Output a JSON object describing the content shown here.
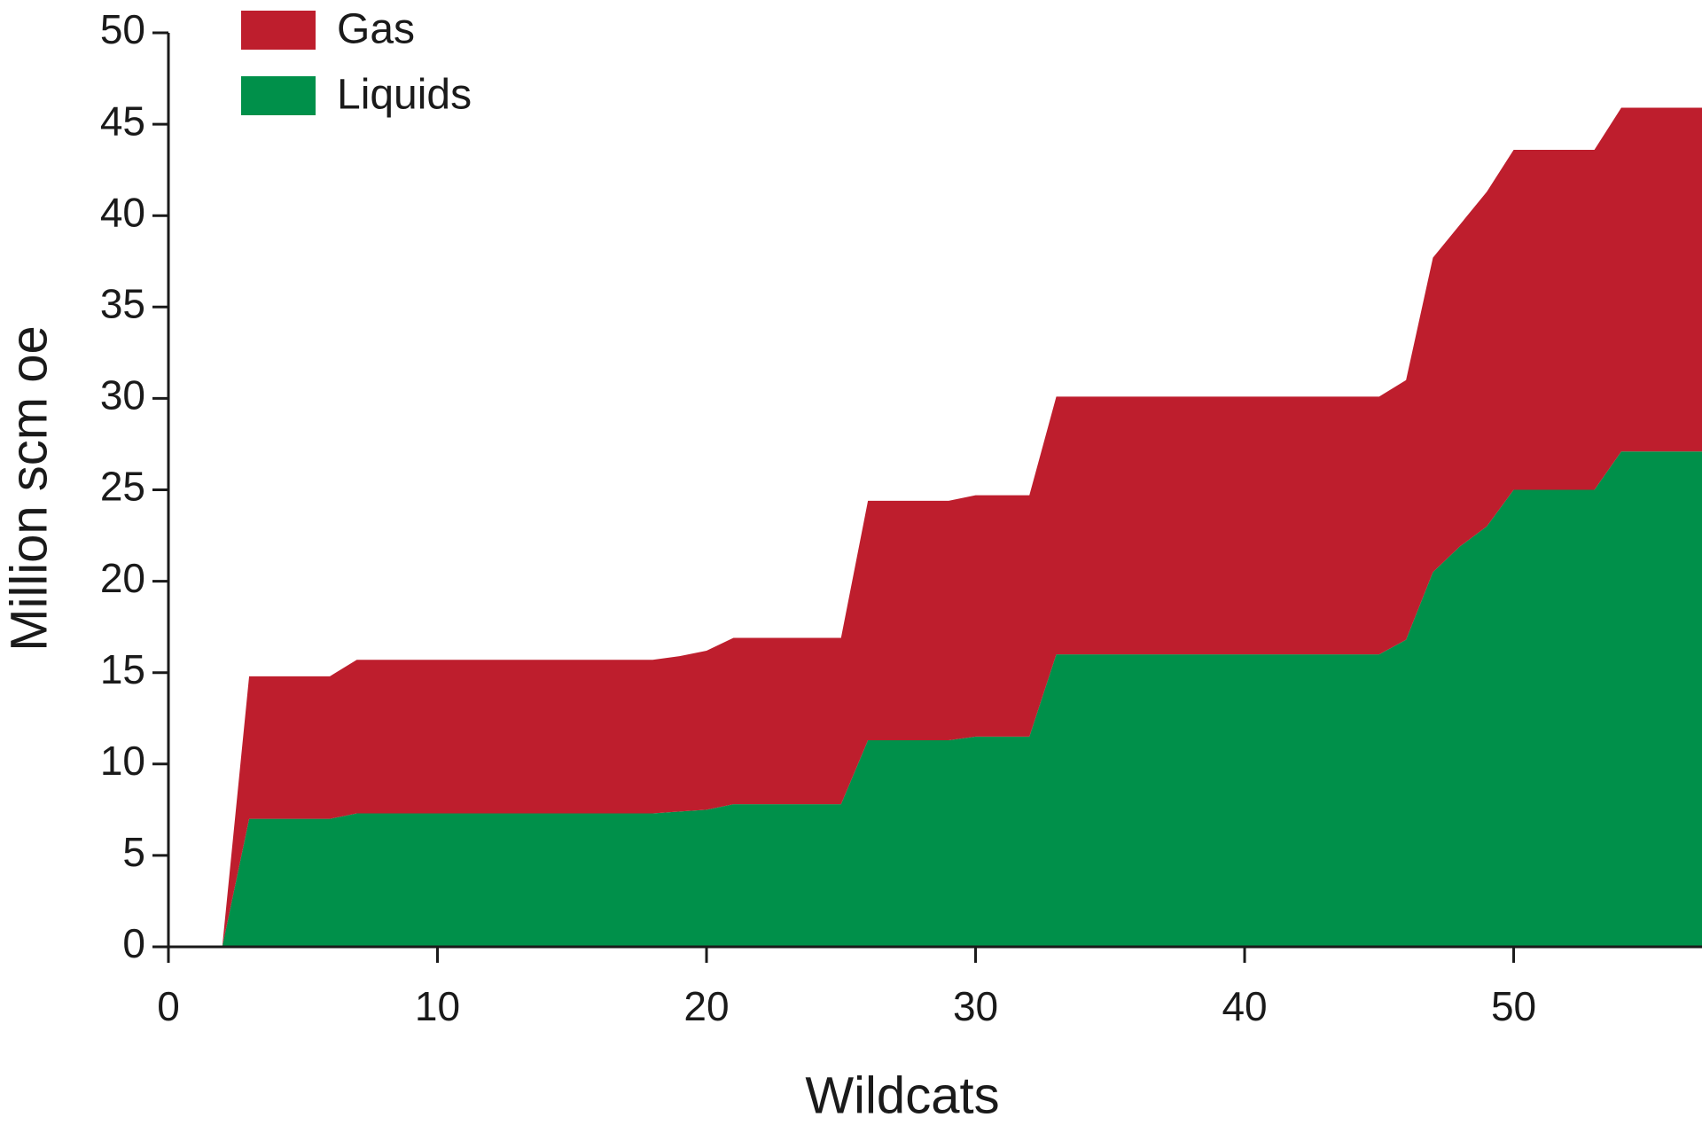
{
  "chart_data": {
    "type": "stacked-area",
    "x_label": "Wildcats",
    "y_label": "Million scm oe",
    "x": [
      2,
      3,
      6,
      7,
      18,
      19,
      20,
      21,
      25,
      26,
      29,
      30,
      32,
      33,
      45,
      46,
      47,
      48,
      49,
      50,
      53,
      54,
      57
    ],
    "series": [
      {
        "name": "Liquids",
        "color": "#00904a",
        "values": [
          0,
          7,
          7,
          7.3,
          7.3,
          7.4,
          7.5,
          7.8,
          7.8,
          11.3,
          11.3,
          11.5,
          11.5,
          16,
          16,
          16.8,
          20.5,
          21.9,
          23,
          25,
          25,
          27.1,
          27.1
        ]
      },
      {
        "name": "Gas",
        "color": "#be1e2d",
        "values": [
          0,
          7.8,
          7.8,
          8.4,
          8.4,
          8.5,
          8.7,
          9.1,
          9.1,
          13.1,
          13.1,
          13.2,
          13.2,
          14.1,
          14.1,
          14.2,
          17.2,
          17.6,
          18.3,
          18.6,
          18.6,
          18.8,
          18.8
        ]
      }
    ],
    "xlim": [
      0,
      57
    ],
    "xticks": [
      0,
      10,
      20,
      30,
      40,
      50
    ],
    "ylim": [
      0,
      50
    ],
    "yticks": [
      0,
      5,
      10,
      15,
      20,
      25,
      30,
      35,
      40,
      45,
      50
    ],
    "grid": false
  }
}
